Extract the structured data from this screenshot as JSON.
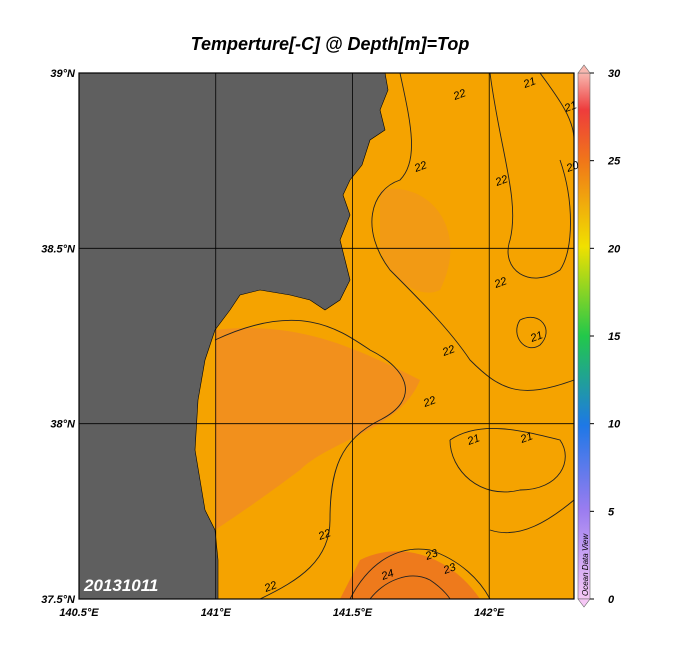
{
  "title": "Temperture[-C] @ Depth[m]=Top",
  "map": {
    "lon_range": [
      140.5,
      142.31
    ],
    "lat_range": [
      37.5,
      39.0
    ],
    "lon_ticks": [
      {
        "value": 140.5,
        "label": "140.5°E"
      },
      {
        "value": 141,
        "label": "141°E"
      },
      {
        "value": 141.5,
        "label": "141.5°E"
      },
      {
        "value": 142,
        "label": "142°E"
      }
    ],
    "lat_ticks": [
      {
        "value": 37.5,
        "label": "37.5°N"
      },
      {
        "value": 38,
        "label": "38°N"
      },
      {
        "value": 38.5,
        "label": "38.5°N"
      },
      {
        "value": 39,
        "label": "39°N"
      }
    ],
    "contour_labels": [
      "22",
      "21",
      "21",
      "20",
      "22",
      "22",
      "22",
      "21",
      "22",
      "22",
      "21",
      "21",
      "22",
      "23",
      "23",
      "24",
      "22"
    ]
  },
  "date_label": "20131011",
  "watermark": "Ocean Data View",
  "colorbar": {
    "range": [
      0,
      30
    ],
    "ticks": [
      0,
      5,
      10,
      15,
      20,
      25,
      30
    ]
  }
}
